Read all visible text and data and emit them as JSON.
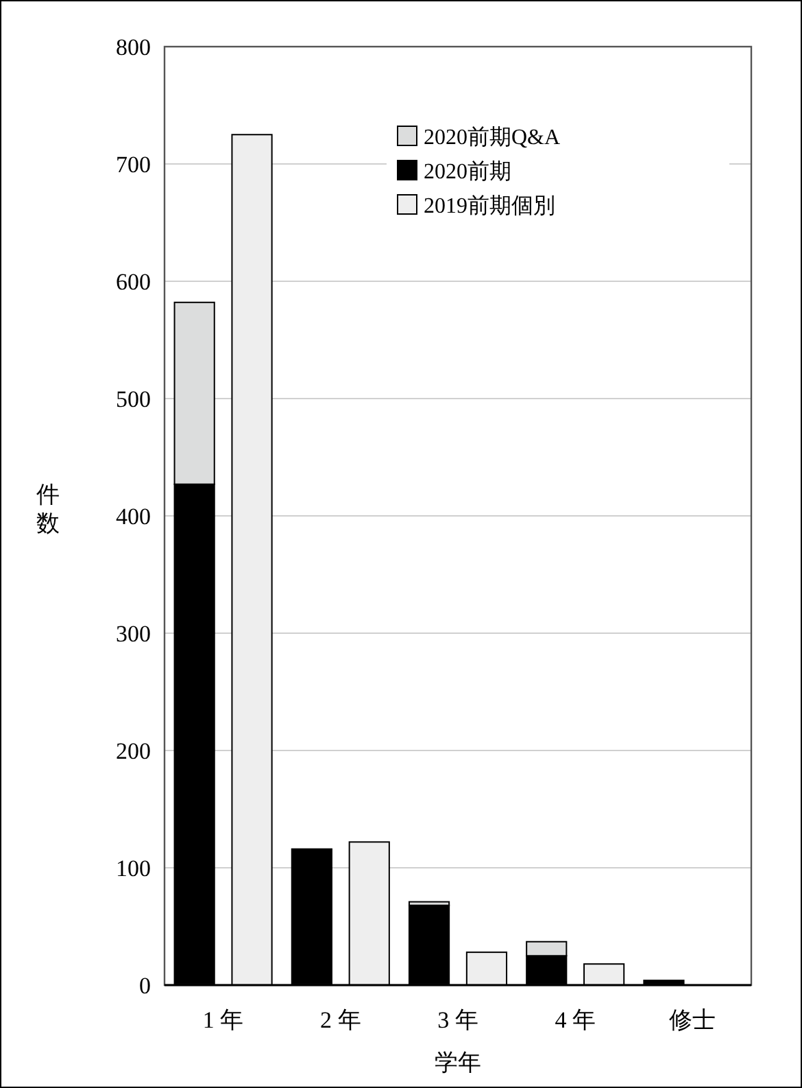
{
  "chart_data": [
    {
      "type": "bar",
      "xlabel": "学年",
      "ylabel": "件数",
      "categories": [
        "1 年",
        "2 年",
        "3 年",
        "4 年",
        "修士"
      ],
      "stacked": true,
      "series": [
        {
          "name": "2020前期",
          "color": "#000000",
          "values": [
            427,
            116,
            68,
            25,
            4
          ]
        },
        {
          "name": "2020前期Q&A",
          "color": "#dcdddd",
          "values": [
            155,
            0,
            3,
            12,
            0
          ]
        }
      ],
      "ylim": [
        0,
        800
      ],
      "yticks": [
        0,
        100,
        200,
        300,
        400,
        500,
        600,
        700,
        800
      ],
      "grid": "y",
      "legend": "top right"
    },
    {
      "type": "bar",
      "series": [
        {
          "name": "2019前期個別",
          "color": "#eeeeee",
          "values": [
            725,
            122,
            28,
            18,
            0
          ]
        }
      ],
      "ylim": [
        0,
        800
      ],
      "legend": "top right"
    }
  ]
}
